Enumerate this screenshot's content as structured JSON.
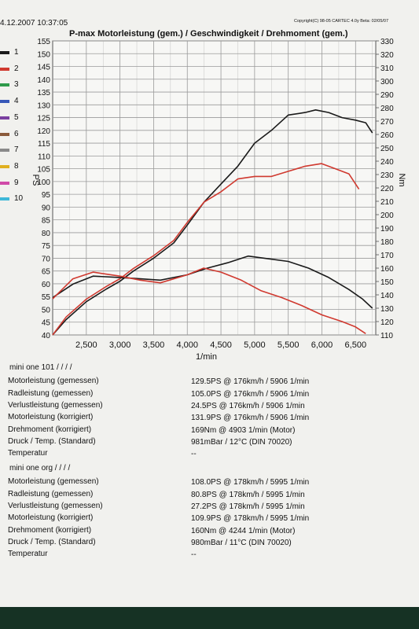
{
  "header": {
    "date": "4.12.2007 10:37:05",
    "copyright": "Copyright(C) 98-05 CARTEC 4.0y Beta: 02/05/07"
  },
  "legend": [
    {
      "num": "1",
      "color": "#1a1a1a"
    },
    {
      "num": "2",
      "color": "#d0392f"
    },
    {
      "num": "3",
      "color": "#2e9a4a"
    },
    {
      "num": "4",
      "color": "#3758b8"
    },
    {
      "num": "5",
      "color": "#7a3fa0"
    },
    {
      "num": "6",
      "color": "#8a5a3a"
    },
    {
      "num": "7",
      "color": "#8a8a8a"
    },
    {
      "num": "8",
      "color": "#e0b020"
    },
    {
      "num": "9",
      "color": "#d04aa8"
    },
    {
      "num": "10",
      "color": "#3fb8d8"
    }
  ],
  "chart_data": {
    "type": "line",
    "title": "P-max Motorleistung (gem.) / Geschwindigkeit / Drehmoment (gem.)",
    "xlabel": "1/min",
    "ylabel": "PS",
    "y2label": "Nm",
    "xlim": [
      2000,
      6800
    ],
    "ylim": [
      40,
      155
    ],
    "y2lim": [
      110,
      330
    ],
    "xticks": [
      "2,500",
      "3,000",
      "3,500",
      "4,000",
      "4,500",
      "5,000",
      "5,500",
      "6,000",
      "6,500"
    ],
    "yticks": [
      "155",
      "150",
      "145",
      "140",
      "135",
      "130",
      "125",
      "120",
      "115",
      "110",
      "105",
      "100",
      "95",
      "90",
      "85",
      "80",
      "75",
      "70",
      "65",
      "60",
      "55",
      "50",
      "45",
      "40"
    ],
    "y2ticks": [
      "330",
      "320",
      "310",
      "300",
      "290",
      "280",
      "270",
      "260",
      "250",
      "240",
      "230",
      "220",
      "210",
      "200",
      "190",
      "180",
      "170",
      "160",
      "150",
      "140",
      "130",
      "120",
      "110"
    ],
    "grid": true,
    "series": [
      {
        "axis": "left",
        "color": "#1a1a1a",
        "x": [
          2000,
          2200,
          2500,
          2800,
          3000,
          3200,
          3500,
          3800,
          4000,
          4250,
          4500,
          4750,
          5000,
          5250,
          5500,
          5750,
          5906,
          6100,
          6300,
          6500,
          6650,
          6750
        ],
        "y": [
          40,
          46,
          53,
          58,
          61,
          65,
          70,
          76,
          83,
          92,
          99,
          106,
          115,
          120,
          126,
          127,
          128,
          127,
          125,
          124,
          123,
          119
        ]
      },
      {
        "axis": "left",
        "color": "#d0392f",
        "x": [
          2000,
          2200,
          2500,
          2800,
          3000,
          3200,
          3500,
          3800,
          4000,
          4250,
          4500,
          4750,
          5000,
          5250,
          5500,
          5750,
          5995,
          6200,
          6400,
          6550
        ],
        "y": [
          40,
          47,
          54,
          59,
          62,
          66,
          71,
          77,
          84,
          92,
          96,
          101,
          102,
          102,
          104,
          106,
          107,
          105,
          103,
          97
        ]
      },
      {
        "axis": "right",
        "color": "#1a1a1a",
        "x": [
          2000,
          2300,
          2600,
          3000,
          3300,
          3600,
          4000,
          4300,
          4600,
          4903,
          5200,
          5500,
          5800,
          6100,
          6400,
          6600,
          6750
        ],
        "y": [
          138,
          148,
          154,
          153,
          152,
          151,
          155,
          160,
          164,
          169,
          167,
          165,
          160,
          153,
          144,
          137,
          130
        ]
      },
      {
        "axis": "right",
        "color": "#d0392f",
        "x": [
          2000,
          2300,
          2600,
          3000,
          3300,
          3600,
          4000,
          4244,
          4500,
          4800,
          5100,
          5400,
          5700,
          6000,
          6300,
          6500,
          6650
        ],
        "y": [
          137,
          152,
          157,
          154,
          151,
          149,
          155,
          160,
          157,
          151,
          143,
          138,
          132,
          125,
          120,
          116,
          111
        ]
      }
    ]
  },
  "results": [
    {
      "title": "mini one 101  /  /  /  /",
      "rows": [
        {
          "label": "Motorleistung (gemessen)",
          "value": "129.5PS @ 176km/h / 5906 1/min"
        },
        {
          "label": "Radleistung (gemessen)",
          "value": "105.0PS @ 176km/h / 5906 1/min"
        },
        {
          "label": "Verlustleistung (gemessen)",
          "value": "24.5PS @ 176km/h / 5906 1/min"
        },
        {
          "label": "Motorleistung (korrigiert)",
          "value": "131.9PS @ 176km/h / 5906 1/min"
        },
        {
          "label": "Drehmoment (korrigiert)",
          "value": "169Nm @ 4903 1/min (Motor)"
        },
        {
          "label": "Druck / Temp. (Standard)",
          "value": "981mBar / 12°C (DIN 70020)"
        },
        {
          "label": "Temperatur",
          "value": "--"
        }
      ]
    },
    {
      "title": "mini one org  /  /  /  /",
      "rows": [
        {
          "label": "Motorleistung (gemessen)",
          "value": "108.0PS @ 178km/h / 5995 1/min"
        },
        {
          "label": "Radleistung (gemessen)",
          "value": "80.8PS @ 178km/h / 5995 1/min"
        },
        {
          "label": "Verlustleistung (gemessen)",
          "value": "27.2PS @ 178km/h / 5995 1/min"
        },
        {
          "label": "Motorleistung (korrigiert)",
          "value": "109.9PS @ 178km/h / 5995 1/min"
        },
        {
          "label": "Drehmoment (korrigiert)",
          "value": "160Nm @ 4244 1/min (Motor)"
        },
        {
          "label": "Druck / Temp. (Standard)",
          "value": "980mBar / 11°C (DIN 70020)"
        },
        {
          "label": "Temperatur",
          "value": "--"
        }
      ]
    }
  ]
}
